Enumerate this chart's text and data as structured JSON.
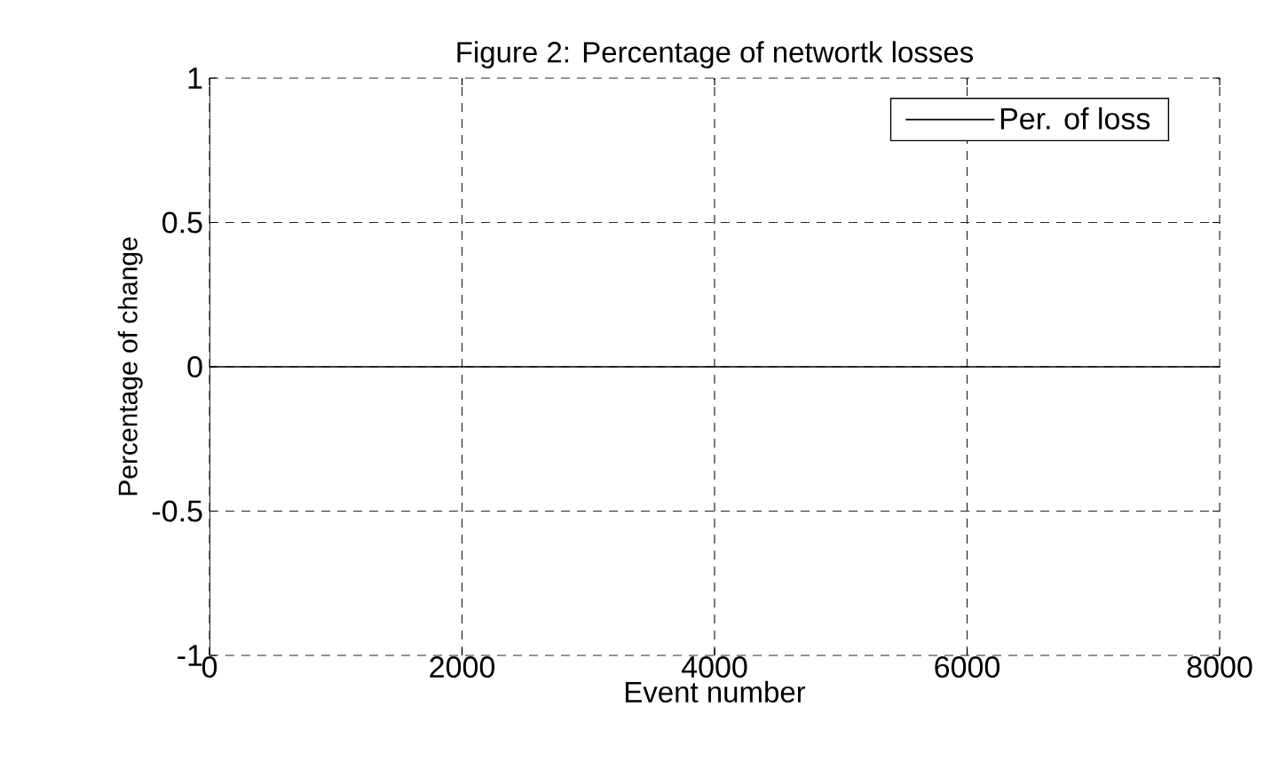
{
  "chart_data": {
    "type": "line",
    "title": "Figure 2: Percentage of networtk losses",
    "xlabel": "Event number",
    "ylabel": "Percentage of change",
    "x": [
      0,
      8000
    ],
    "series": [
      {
        "name": "Per. of loss",
        "color": "#000000",
        "values": [
          0,
          0
        ]
      }
    ],
    "xlim": [
      0,
      8000
    ],
    "ylim": [
      -1,
      1
    ],
    "xticks": [
      0,
      2000,
      4000,
      6000,
      8000
    ],
    "yticks": [
      -1,
      -0.5,
      0,
      0.5,
      1
    ],
    "grid": true,
    "legend": "top right",
    "line_style": "solid",
    "marker": "none"
  }
}
